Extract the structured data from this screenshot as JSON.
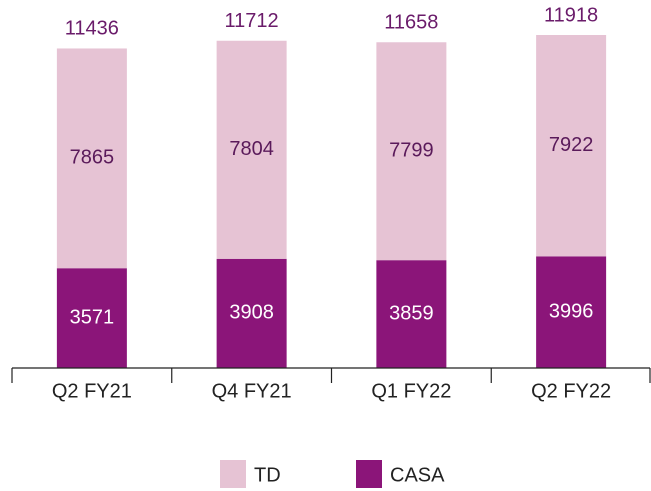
{
  "chart_data": {
    "type": "stacked_bar",
    "categories": [
      "Q2 FY21",
      "Q4 FY21",
      "Q1 FY22",
      "Q2 FY22"
    ],
    "series": [
      {
        "name": "TD",
        "color": "#e6c3d4",
        "values": [
          7865,
          7804,
          7799,
          7922
        ]
      },
      {
        "name": "CASA",
        "color": "#8b1579",
        "values": [
          3571,
          3908,
          3859,
          3996
        ]
      }
    ],
    "totals": [
      11436,
      11712,
      11658,
      11918
    ]
  }
}
